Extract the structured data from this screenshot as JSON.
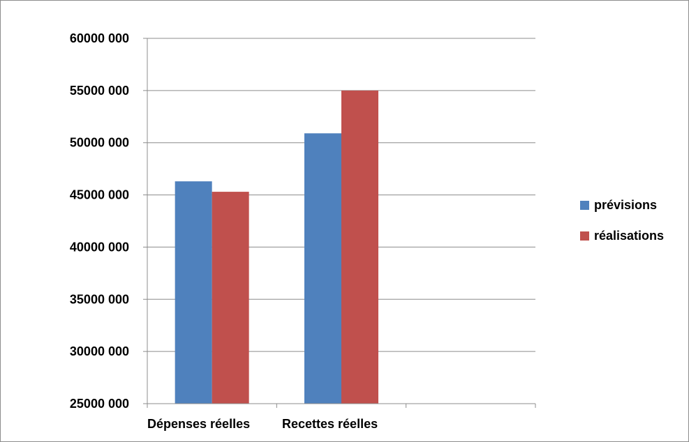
{
  "chart_data": {
    "type": "bar",
    "categories": [
      "Dépenses réelles",
      "Recettes réelles"
    ],
    "series": [
      {
        "name": "prévisions",
        "color": "#4f81bd",
        "values": [
          46300000,
          50900000
        ]
      },
      {
        "name": "réalisations",
        "color": "#c0504d",
        "values": [
          45300000,
          55000000
        ]
      }
    ],
    "ylim": [
      25000000,
      60000000
    ],
    "y_ticks": [
      {
        "value": 60000000,
        "label": "60000 000"
      },
      {
        "value": 55000000,
        "label": "55000 000"
      },
      {
        "value": 50000000,
        "label": "50000 000"
      },
      {
        "value": 45000000,
        "label": "45000 000"
      },
      {
        "value": 40000000,
        "label": "40000 000"
      },
      {
        "value": 35000000,
        "label": "35000 000"
      },
      {
        "value": 30000000,
        "label": "30000 000"
      },
      {
        "value": 25000000,
        "label": "25000 000"
      }
    ],
    "grid": true,
    "legend": {
      "placement": "right"
    }
  }
}
